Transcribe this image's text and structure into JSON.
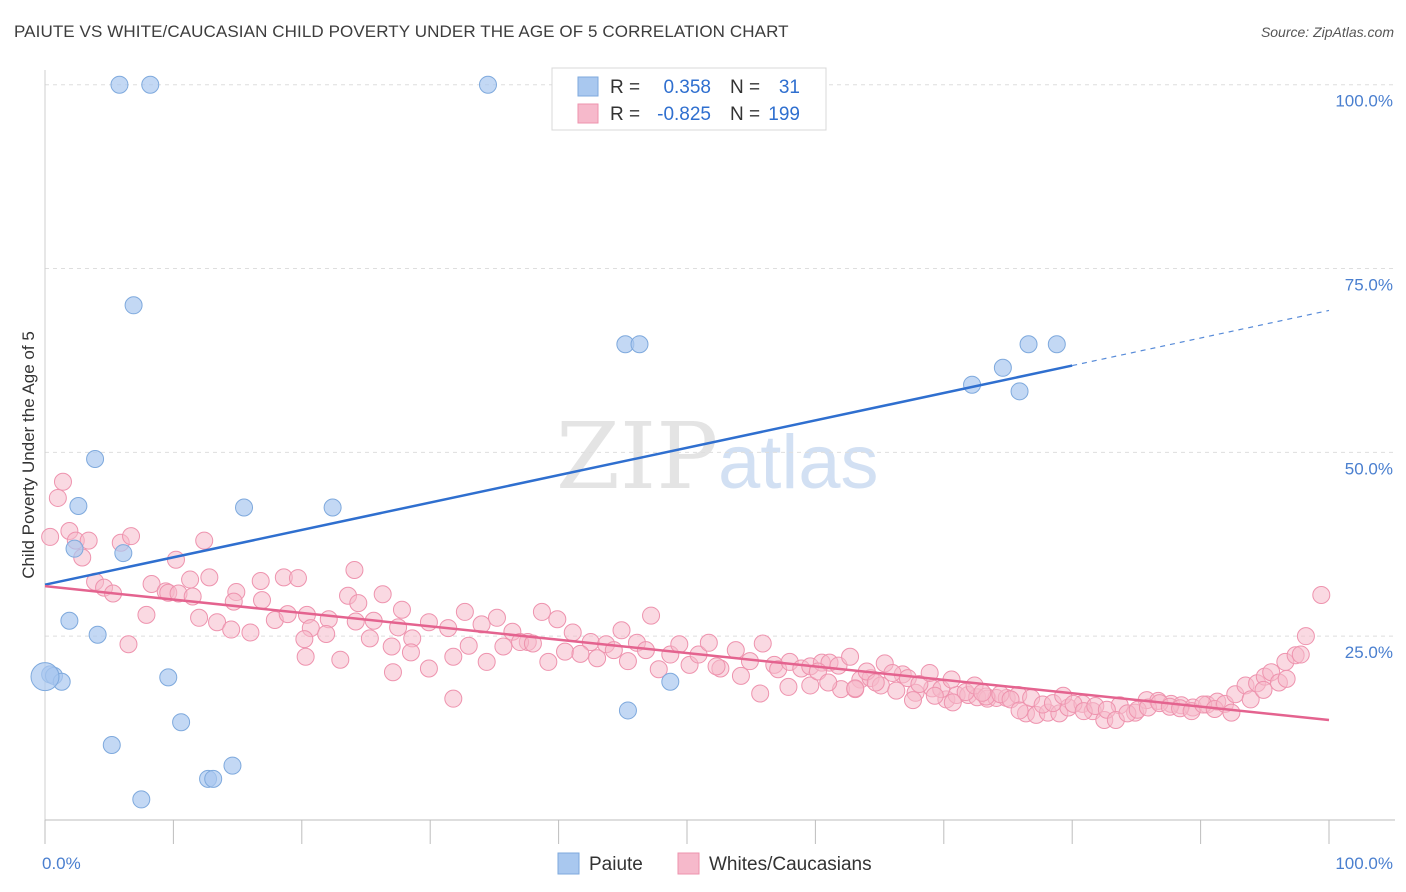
{
  "header": {
    "title": "PAIUTE VS WHITE/CAUCASIAN CHILD POVERTY UNDER THE AGE OF 5 CORRELATION CHART",
    "source": "Source: ZipAtlas.com"
  },
  "watermark": {
    "zip": "ZIP",
    "atlas": "atlas"
  },
  "colors": {
    "blue_fill": "#a9c8ef",
    "blue_stroke": "#7ea9dd",
    "blue_line": "#2f6fcf",
    "pink_fill": "#f6b9cb",
    "pink_stroke": "#ee93ae",
    "pink_line": "#e4638f",
    "tick_label": "#4a7fcf"
  },
  "chart_data": {
    "type": "scatter",
    "title": "PAIUTE VS WHITE/CAUCASIAN CHILD POVERTY UNDER THE AGE OF 5 CORRELATION CHART",
    "xlabel": "",
    "ylabel": "Child Poverty Under the Age of 5",
    "xlim": [
      0,
      100
    ],
    "ylim": [
      0,
      102
    ],
    "x_tick_labels": [
      "0.0%",
      "100.0%"
    ],
    "y_ticks": [
      25,
      50,
      75,
      100
    ],
    "y_tick_labels": [
      "25.0%",
      "50.0%",
      "75.0%",
      "100.0%"
    ],
    "grid": true,
    "legend": {
      "stats": [
        {
          "r_label": "R =",
          "r_value": "0.358",
          "n_label": "N =",
          "n_value": "31"
        },
        {
          "r_label": "R =",
          "r_value": "-0.825",
          "n_label": "N =",
          "n_value": "199"
        }
      ],
      "entries": [
        "Paiute",
        "Whites/Caucasians"
      ]
    },
    "series": [
      {
        "name": "Paiute",
        "trend": {
          "x0": 0,
          "y0": 32.0,
          "x1": 80,
          "y1": 61.8,
          "dash_to": 100,
          "dash_y": 69.3
        },
        "points": [
          [
            5.8,
            100
          ],
          [
            8.2,
            100
          ],
          [
            34.5,
            100
          ],
          [
            6.9,
            70
          ],
          [
            45.2,
            64.7
          ],
          [
            46.3,
            64.7
          ],
          [
            76.6,
            64.7
          ],
          [
            78.8,
            64.7
          ],
          [
            74.6,
            61.5
          ],
          [
            72.2,
            59.2
          ],
          [
            75.9,
            58.3
          ],
          [
            3.9,
            49.1
          ],
          [
            2.6,
            42.7
          ],
          [
            15.5,
            42.5
          ],
          [
            22.4,
            42.5
          ],
          [
            2.3,
            36.9
          ],
          [
            6.1,
            36.3
          ],
          [
            1.9,
            27.1
          ],
          [
            4.1,
            25.2
          ],
          [
            0.4,
            19.8
          ],
          [
            0.7,
            19.6
          ],
          [
            1.3,
            18.8
          ],
          [
            9.6,
            19.4
          ],
          [
            48.7,
            18.8
          ],
          [
            10.6,
            13.3
          ],
          [
            45.4,
            14.9
          ],
          [
            5.2,
            10.2
          ],
          [
            14.6,
            7.4
          ],
          [
            12.7,
            5.6
          ],
          [
            13.1,
            5.6
          ],
          [
            7.5,
            2.8
          ]
        ]
      },
      {
        "name": "Whites/Caucasians",
        "trend": {
          "x0": 0,
          "y0": 31.8,
          "x1": 100,
          "y1": 13.6
        },
        "points": [
          [
            1.4,
            46
          ],
          [
            1.0,
            43.8
          ],
          [
            0.4,
            38.5
          ],
          [
            1.9,
            39.3
          ],
          [
            2.4,
            38
          ],
          [
            3.4,
            38
          ],
          [
            5.9,
            37.7
          ],
          [
            6.7,
            38.6
          ],
          [
            2.9,
            35.7
          ],
          [
            10.2,
            35.4
          ],
          [
            12.4,
            38
          ],
          [
            24.1,
            34
          ],
          [
            3.9,
            32.4
          ],
          [
            4.6,
            31.6
          ],
          [
            5.3,
            30.8
          ],
          [
            8.3,
            32.1
          ],
          [
            9.4,
            31.1
          ],
          [
            9.6,
            30.9
          ],
          [
            10.4,
            30.8
          ],
          [
            11.3,
            32.7
          ],
          [
            12.8,
            33
          ],
          [
            14.9,
            31
          ],
          [
            16.8,
            32.5
          ],
          [
            18.6,
            33
          ],
          [
            19.7,
            32.9
          ],
          [
            11.5,
            30.4
          ],
          [
            14.7,
            29.7
          ],
          [
            16.9,
            29.9
          ],
          [
            20.4,
            27.9
          ],
          [
            22.1,
            27.3
          ],
          [
            23.6,
            30.5
          ],
          [
            24.4,
            29.5
          ],
          [
            26.3,
            30.7
          ],
          [
            27.8,
            28.6
          ],
          [
            7.9,
            27.9
          ],
          [
            12.0,
            27.5
          ],
          [
            13.4,
            26.9
          ],
          [
            14.5,
            25.9
          ],
          [
            16.0,
            25.5
          ],
          [
            17.9,
            27.2
          ],
          [
            18.9,
            28
          ],
          [
            20.7,
            26.1
          ],
          [
            21.9,
            25.3
          ],
          [
            24.2,
            27
          ],
          [
            25.6,
            27.1
          ],
          [
            27.5,
            26.2
          ],
          [
            28.6,
            24.7
          ],
          [
            29.9,
            26.9
          ],
          [
            31.4,
            26.1
          ],
          [
            32.7,
            28.3
          ],
          [
            34.0,
            26.6
          ],
          [
            35.2,
            27.5
          ],
          [
            36.4,
            25.6
          ],
          [
            37.6,
            24.2
          ],
          [
            38.7,
            28.3
          ],
          [
            39.9,
            27.3
          ],
          [
            41.1,
            25.5
          ],
          [
            42.5,
            24.2
          ],
          [
            43.7,
            23.9
          ],
          [
            44.9,
            25.8
          ],
          [
            46.1,
            24.1
          ],
          [
            47.2,
            27.8
          ],
          [
            6.5,
            23.9
          ],
          [
            20.2,
            24.6
          ],
          [
            20.3,
            22.2
          ],
          [
            23.0,
            21.8
          ],
          [
            25.3,
            24.7
          ],
          [
            27.0,
            23.6
          ],
          [
            28.5,
            22.8
          ],
          [
            29.9,
            20.6
          ],
          [
            31.8,
            22.2
          ],
          [
            33.0,
            23.7
          ],
          [
            34.4,
            21.5
          ],
          [
            35.7,
            23.6
          ],
          [
            37.0,
            24.2
          ],
          [
            38.0,
            24
          ],
          [
            39.2,
            21.5
          ],
          [
            40.5,
            22.9
          ],
          [
            41.7,
            22.6
          ],
          [
            43.0,
            22
          ],
          [
            44.3,
            23.1
          ],
          [
            45.4,
            21.6
          ],
          [
            46.8,
            23.1
          ],
          [
            47.8,
            20.5
          ],
          [
            48.7,
            22.5
          ],
          [
            49.4,
            23.9
          ],
          [
            50.2,
            21.1
          ],
          [
            50.9,
            22.5
          ],
          [
            51.7,
            24.1
          ],
          [
            52.6,
            20.6
          ],
          [
            53.8,
            23.1
          ],
          [
            54.9,
            21.6
          ],
          [
            55.9,
            24
          ],
          [
            56.8,
            21.1
          ],
          [
            27.1,
            20.1
          ],
          [
            31.8,
            16.5
          ],
          [
            52.3,
            20.9
          ],
          [
            54.2,
            19.6
          ],
          [
            55.7,
            17.2
          ],
          [
            57.1,
            20.5
          ],
          [
            58.0,
            21.5
          ],
          [
            58.9,
            20.6
          ],
          [
            59.6,
            20.9
          ],
          [
            60.5,
            21.4
          ],
          [
            61.1,
            21.4
          ],
          [
            61.8,
            21
          ],
          [
            62.7,
            22.2
          ],
          [
            63.5,
            19.1
          ],
          [
            64.3,
            19.3
          ],
          [
            65.4,
            21.3
          ],
          [
            66.8,
            19.8
          ],
          [
            67.8,
            17.3
          ],
          [
            69.1,
            17.9
          ],
          [
            70.2,
            16.4
          ],
          [
            71.0,
            17
          ],
          [
            71.9,
            17
          ],
          [
            72.6,
            16.7
          ],
          [
            73.4,
            16.5
          ],
          [
            74.1,
            16.6
          ],
          [
            74.9,
            16.6
          ],
          [
            75.8,
            17
          ],
          [
            76.4,
            14.5
          ],
          [
            77.2,
            14.3
          ],
          [
            78.1,
            14.6
          ],
          [
            79.0,
            14.5
          ],
          [
            79.7,
            15.3
          ],
          [
            80.8,
            15.8
          ],
          [
            81.6,
            14.8
          ],
          [
            82.5,
            13.6
          ],
          [
            83.7,
            15.6
          ],
          [
            84.9,
            14.6
          ],
          [
            85.8,
            16.3
          ],
          [
            86.7,
            16.2
          ],
          [
            87.7,
            15.8
          ],
          [
            88.5,
            15.6
          ],
          [
            89.4,
            15.3
          ],
          [
            90.5,
            15.7
          ],
          [
            91.3,
            16.1
          ],
          [
            62.0,
            17.8
          ],
          [
            63.1,
            17.8
          ],
          [
            64.0,
            20.2
          ],
          [
            65.1,
            18.3
          ],
          [
            66.0,
            20
          ],
          [
            67.2,
            19.3
          ],
          [
            68.1,
            18.5
          ],
          [
            68.9,
            20
          ],
          [
            69.8,
            17.8
          ],
          [
            70.6,
            19.1
          ],
          [
            71.7,
            17.4
          ],
          [
            72.4,
            18.3
          ],
          [
            73.3,
            16.8
          ],
          [
            74.4,
            17.1
          ],
          [
            75.2,
            16.4
          ],
          [
            75.9,
            14.9
          ],
          [
            76.8,
            16.6
          ],
          [
            77.7,
            15.7
          ],
          [
            78.5,
            15.9
          ],
          [
            79.3,
            16.9
          ],
          [
            80.1,
            15.8
          ],
          [
            80.9,
            14.8
          ],
          [
            81.8,
            15.5
          ],
          [
            82.7,
            15
          ],
          [
            83.4,
            13.6
          ],
          [
            84.3,
            14.5
          ],
          [
            85.1,
            15
          ],
          [
            85.9,
            15.3
          ],
          [
            86.8,
            15.9
          ],
          [
            87.6,
            15.4
          ],
          [
            88.4,
            15.2
          ],
          [
            89.3,
            14.8
          ],
          [
            90.2,
            15.7
          ],
          [
            91.1,
            15.1
          ],
          [
            91.9,
            15.8
          ],
          [
            92.7,
            17.1
          ],
          [
            93.5,
            18.3
          ],
          [
            94.4,
            18.6
          ],
          [
            95.0,
            19.5
          ],
          [
            95.5,
            20.1
          ],
          [
            96.1,
            18.7
          ],
          [
            96.6,
            21.5
          ],
          [
            97.4,
            22.4
          ],
          [
            98.2,
            25
          ],
          [
            99.4,
            30.6
          ],
          [
            92.4,
            14.6
          ],
          [
            93.9,
            16.4
          ],
          [
            94.9,
            17.7
          ],
          [
            96.7,
            19.2
          ],
          [
            97.8,
            22.5
          ],
          [
            57.9,
            18.1
          ],
          [
            59.6,
            18.3
          ],
          [
            60.2,
            20.2
          ],
          [
            61.0,
            18.7
          ],
          [
            63.1,
            17.9
          ],
          [
            64.7,
            18.7
          ],
          [
            66.3,
            17.6
          ],
          [
            67.6,
            16.3
          ],
          [
            69.3,
            16.9
          ],
          [
            70.7,
            16
          ],
          [
            73.0,
            17.3
          ]
        ]
      }
    ]
  }
}
